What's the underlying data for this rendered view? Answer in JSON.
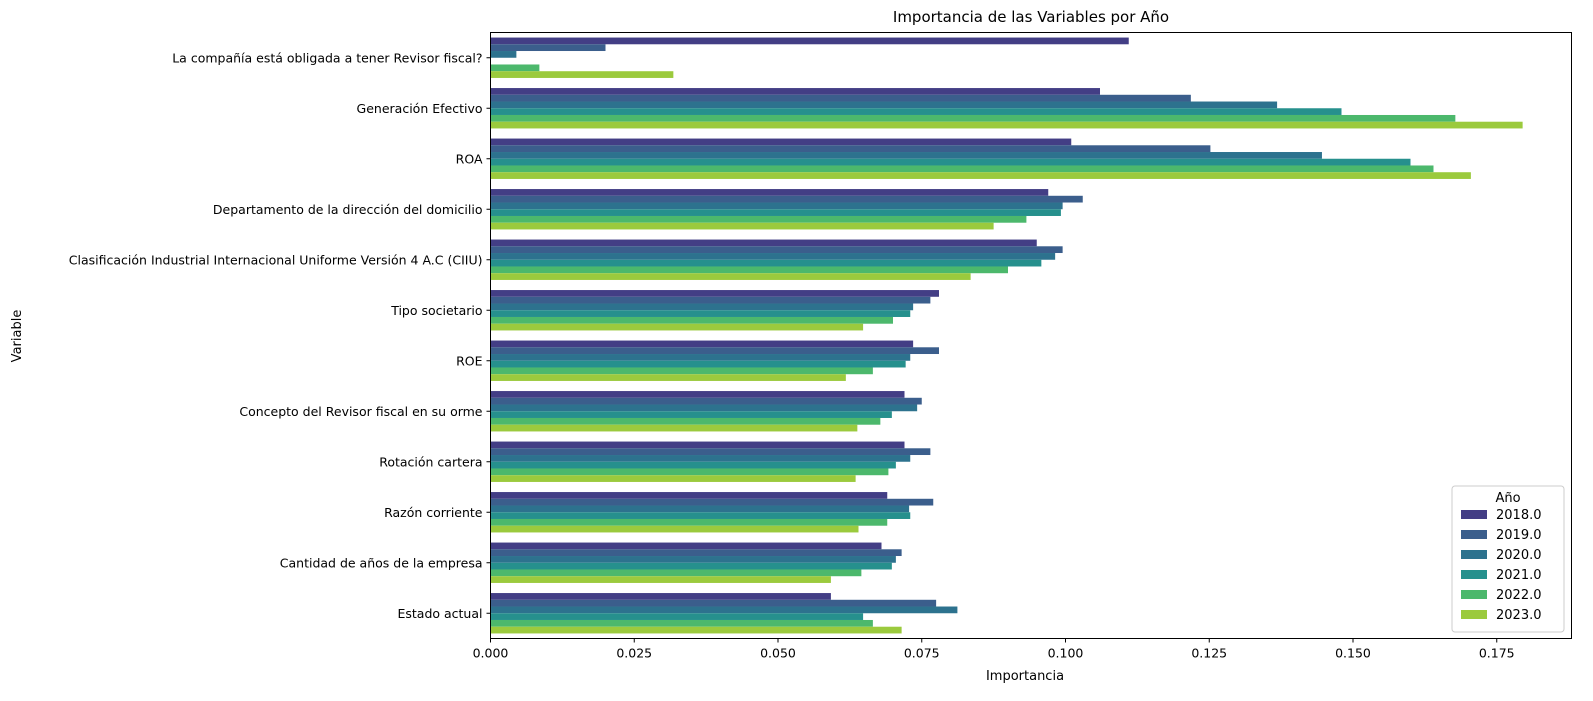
{
  "chart_data": {
    "type": "bar",
    "orientation": "horizontal",
    "title": "Importancia de las Variables por Año",
    "xlabel": "Importancia",
    "ylabel": "Variable",
    "xlim": [
      0,
      0.188
    ],
    "xticks": [
      "0.000",
      "0.025",
      "0.050",
      "0.075",
      "0.100",
      "0.125",
      "0.150",
      "0.175"
    ],
    "grid": false,
    "legend_title": "Año",
    "legend_position": "bottom-right",
    "categories": [
      "La compañía está obligada a tener Revisor fiscal?",
      "Generación Efectivo",
      "ROA",
      "Departamento de la dirección del domicilio",
      "Clasificación Industrial Internacional Uniforme Versión 4 A.C (CIIU)",
      "Tipo societario",
      "ROE",
      "Concepto del Revisor fiscal en su orme",
      "Rotación cartera",
      "Razón corriente",
      "Cantidad de años de la empresa",
      "Estado actual"
    ],
    "series": [
      {
        "name": "2018.0",
        "color": "#433e85",
        "values": [
          0.111,
          0.106,
          0.101,
          0.097,
          0.095,
          0.078,
          0.0735,
          0.072,
          0.072,
          0.069,
          0.068,
          0.0592
        ]
      },
      {
        "name": "2019.0",
        "color": "#3b5e8c",
        "values": [
          0.02,
          0.1218,
          0.1252,
          0.103,
          0.0995,
          0.0765,
          0.078,
          0.075,
          0.0765,
          0.077,
          0.0715,
          0.0775
        ]
      },
      {
        "name": "2020.0",
        "color": "#2d728e",
        "values": [
          0.0045,
          0.1368,
          0.1446,
          0.0995,
          0.0982,
          0.0735,
          0.073,
          0.0742,
          0.073,
          0.0728,
          0.0705,
          0.0812
        ]
      },
      {
        "name": "2021.0",
        "color": "#26908d",
        "values": [
          0.0,
          0.148,
          0.16,
          0.0992,
          0.0958,
          0.073,
          0.0722,
          0.0698,
          0.0705,
          0.073,
          0.0698,
          0.0648
        ]
      },
      {
        "name": "2022.0",
        "color": "#4cb86c",
        "values": [
          0.0085,
          0.1678,
          0.164,
          0.0932,
          0.09,
          0.07,
          0.0665,
          0.0678,
          0.0692,
          0.069,
          0.0645,
          0.0665
        ]
      },
      {
        "name": "2023.0",
        "color": "#9bca3d",
        "values": [
          0.0318,
          0.1795,
          0.1705,
          0.0875,
          0.0835,
          0.0648,
          0.0618,
          0.0638,
          0.0635,
          0.064,
          0.0592,
          0.0715
        ]
      }
    ]
  }
}
